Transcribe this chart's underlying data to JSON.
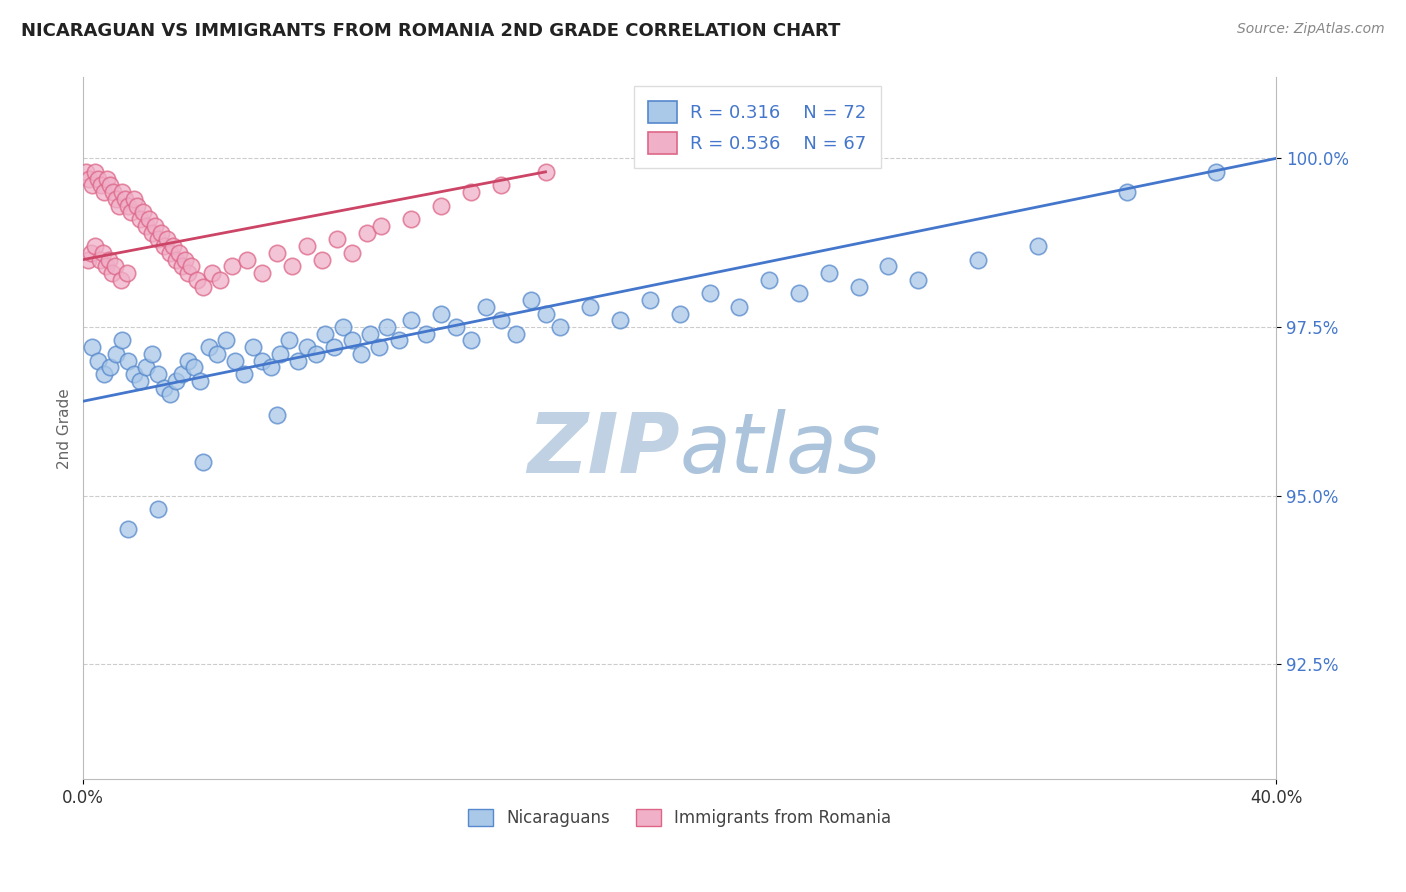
{
  "title": "NICARAGUAN VS IMMIGRANTS FROM ROMANIA 2ND GRADE CORRELATION CHART",
  "source": "Source: ZipAtlas.com",
  "ylabel": "2nd Grade",
  "yticks": [
    92.5,
    95.0,
    97.5,
    100.0
  ],
  "ytick_labels": [
    "92.5%",
    "95.0%",
    "97.5%",
    "100.0%"
  ],
  "xmin": 0.0,
  "xmax": 40.0,
  "ymin": 90.8,
  "ymax": 101.2,
  "legend_r1": "R = 0.316",
  "legend_n1": "N = 72",
  "legend_r2": "R = 0.536",
  "legend_n2": "N = 67",
  "blue_color": "#aac8e8",
  "blue_edge": "#5588cc",
  "blue_line": "#4477cc",
  "pink_color": "#f0b0c8",
  "pink_edge": "#dd6688",
  "pink_line": "#cc4466",
  "legend_text_color": "#4477cc",
  "watermark_color": "#ccd8e8",
  "blue_x": [
    0.3,
    0.5,
    0.7,
    0.9,
    1.1,
    1.3,
    1.5,
    1.7,
    1.9,
    2.1,
    2.3,
    2.5,
    2.7,
    2.9,
    3.1,
    3.3,
    3.5,
    3.7,
    3.9,
    4.2,
    4.5,
    4.8,
    5.1,
    5.4,
    5.7,
    6.0,
    6.3,
    6.6,
    6.9,
    7.2,
    7.5,
    7.8,
    8.1,
    8.4,
    8.7,
    9.0,
    9.3,
    9.6,
    9.9,
    10.2,
    10.6,
    11.0,
    11.5,
    12.0,
    12.5,
    13.0,
    13.5,
    14.0,
    14.5,
    15.0,
    15.5,
    16.0,
    17.0,
    18.0,
    19.0,
    20.0,
    21.0,
    22.0,
    23.0,
    24.0,
    25.0,
    26.0,
    27.0,
    28.0,
    30.0,
    32.0,
    35.0,
    38.0,
    1.5,
    2.5,
    4.0,
    6.5
  ],
  "blue_y": [
    97.2,
    97.0,
    96.8,
    96.9,
    97.1,
    97.3,
    97.0,
    96.8,
    96.7,
    96.9,
    97.1,
    96.8,
    96.6,
    96.5,
    96.7,
    96.8,
    97.0,
    96.9,
    96.7,
    97.2,
    97.1,
    97.3,
    97.0,
    96.8,
    97.2,
    97.0,
    96.9,
    97.1,
    97.3,
    97.0,
    97.2,
    97.1,
    97.4,
    97.2,
    97.5,
    97.3,
    97.1,
    97.4,
    97.2,
    97.5,
    97.3,
    97.6,
    97.4,
    97.7,
    97.5,
    97.3,
    97.8,
    97.6,
    97.4,
    97.9,
    97.7,
    97.5,
    97.8,
    97.6,
    97.9,
    97.7,
    98.0,
    97.8,
    98.2,
    98.0,
    98.3,
    98.1,
    98.4,
    98.2,
    98.5,
    98.7,
    99.5,
    99.8,
    94.5,
    94.8,
    95.5,
    96.2
  ],
  "pink_x": [
    0.1,
    0.2,
    0.3,
    0.4,
    0.5,
    0.6,
    0.7,
    0.8,
    0.9,
    1.0,
    1.1,
    1.2,
    1.3,
    1.4,
    1.5,
    1.6,
    1.7,
    1.8,
    1.9,
    2.0,
    2.1,
    2.2,
    2.3,
    2.4,
    2.5,
    2.6,
    2.7,
    2.8,
    2.9,
    3.0,
    3.1,
    3.2,
    3.3,
    3.4,
    3.5,
    3.6,
    3.8,
    4.0,
    4.3,
    4.6,
    5.0,
    5.5,
    6.0,
    6.5,
    7.0,
    7.5,
    8.0,
    8.5,
    9.0,
    9.5,
    10.0,
    11.0,
    12.0,
    13.0,
    14.0,
    15.5,
    0.15,
    0.25,
    0.4,
    0.55,
    0.65,
    0.75,
    0.85,
    0.95,
    1.05,
    1.25,
    1.45
  ],
  "pink_y": [
    99.8,
    99.7,
    99.6,
    99.8,
    99.7,
    99.6,
    99.5,
    99.7,
    99.6,
    99.5,
    99.4,
    99.3,
    99.5,
    99.4,
    99.3,
    99.2,
    99.4,
    99.3,
    99.1,
    99.2,
    99.0,
    99.1,
    98.9,
    99.0,
    98.8,
    98.9,
    98.7,
    98.8,
    98.6,
    98.7,
    98.5,
    98.6,
    98.4,
    98.5,
    98.3,
    98.4,
    98.2,
    98.1,
    98.3,
    98.2,
    98.4,
    98.5,
    98.3,
    98.6,
    98.4,
    98.7,
    98.5,
    98.8,
    98.6,
    98.9,
    99.0,
    99.1,
    99.3,
    99.5,
    99.6,
    99.8,
    98.5,
    98.6,
    98.7,
    98.5,
    98.6,
    98.4,
    98.5,
    98.3,
    98.4,
    98.2,
    98.3
  ],
  "blue_line_x0": 0.0,
  "blue_line_x1": 40.0,
  "blue_line_y0": 96.4,
  "blue_line_y1": 100.0,
  "pink_line_x0": 0.0,
  "pink_line_x1": 15.5,
  "pink_line_y0": 98.5,
  "pink_line_y1": 99.8
}
